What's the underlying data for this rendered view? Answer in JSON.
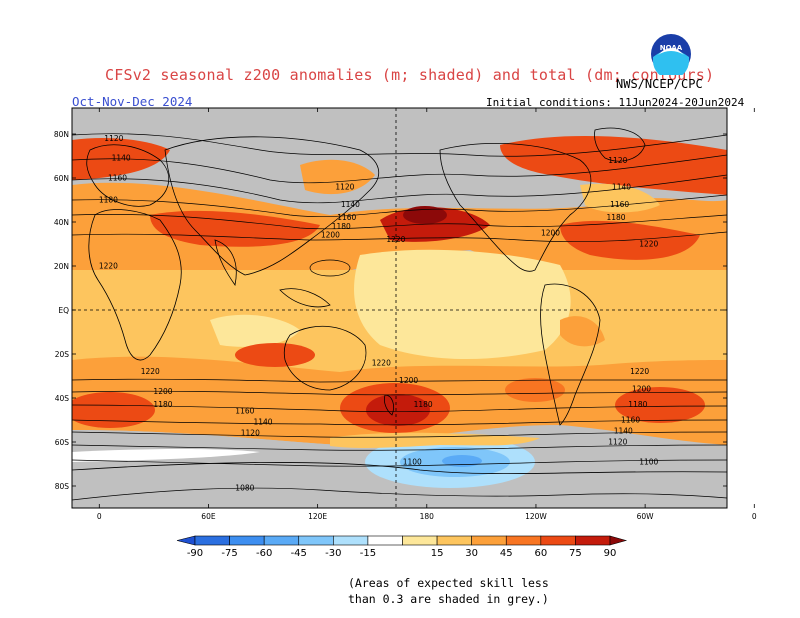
{
  "header": {
    "title": "CFSv2 seasonal z200 anomalies (m; shaded) and total (dm; contours)",
    "season": "Oct-Nov-Dec 2024",
    "initial_conditions": "Initial conditions: 11Jun2024-20Jun2024",
    "organization": "NWS/NCEP/CPC",
    "logo_text": "NOAA"
  },
  "map": {
    "lat_labels": [
      "80N",
      "60N",
      "40N",
      "20N",
      "EQ",
      "20S",
      "40S",
      "60S",
      "80S"
    ],
    "lon_labels": [
      "0",
      "60E",
      "120E",
      "180",
      "120W",
      "60W",
      "0"
    ],
    "contour_labels": [
      {
        "text": "1120",
        "lon": 8,
        "lat": 78
      },
      {
        "text": "1140",
        "lon": 12,
        "lat": 69
      },
      {
        "text": "1160",
        "lon": 10,
        "lat": 60
      },
      {
        "text": "1180",
        "lon": 5,
        "lat": 50
      },
      {
        "text": "1220",
        "lon": 5,
        "lat": 20
      },
      {
        "text": "1120",
        "lon": 135,
        "lat": 56
      },
      {
        "text": "1140",
        "lon": 138,
        "lat": 48
      },
      {
        "text": "1160",
        "lon": 136,
        "lat": 42
      },
      {
        "text": "1180",
        "lon": 133,
        "lat": 38
      },
      {
        "text": "1200",
        "lon": 127,
        "lat": 34
      },
      {
        "text": "1220",
        "lon": 163,
        "lat": 32
      },
      {
        "text": "1200",
        "lon": -112,
        "lat": 35
      },
      {
        "text": "1220",
        "lon": -58,
        "lat": 30
      },
      {
        "text": "1120",
        "lon": -75,
        "lat": 68
      },
      {
        "text": "1140",
        "lon": -73,
        "lat": 56
      },
      {
        "text": "1160",
        "lon": -74,
        "lat": 48
      },
      {
        "text": "1180",
        "lon": -76,
        "lat": 42
      },
      {
        "text": "1220",
        "lon": 28,
        "lat": -28
      },
      {
        "text": "1220",
        "lon": 155,
        "lat": -24
      },
      {
        "text": "1220",
        "lon": -63,
        "lat": -28
      },
      {
        "text": "1200",
        "lon": 35,
        "lat": -37
      },
      {
        "text": "1200",
        "lon": 170,
        "lat": -32
      },
      {
        "text": "1200",
        "lon": -62,
        "lat": -36
      },
      {
        "text": "1180",
        "lon": 35,
        "lat": -43
      },
      {
        "text": "1180",
        "lon": 178,
        "lat": -43
      },
      {
        "text": "1180",
        "lon": -64,
        "lat": -43
      },
      {
        "text": "1160",
        "lon": 80,
        "lat": -46
      },
      {
        "text": "1160",
        "lon": -68,
        "lat": -50
      },
      {
        "text": "1140",
        "lon": 90,
        "lat": -51
      },
      {
        "text": "1140",
        "lon": -72,
        "lat": -55
      },
      {
        "text": "1120",
        "lon": 83,
        "lat": -56
      },
      {
        "text": "1120",
        "lon": -75,
        "lat": -60
      },
      {
        "text": "1100",
        "lon": 172,
        "lat": -69
      },
      {
        "text": "1100",
        "lon": -58,
        "lat": -69
      },
      {
        "text": "1080",
        "lon": 80,
        "lat": -81
      }
    ]
  },
  "colorbar": {
    "labels": [
      "-90",
      "-75",
      "-60",
      "-45",
      "-30",
      "-15",
      "15",
      "30",
      "45",
      "60",
      "75",
      "90"
    ],
    "colors": [
      "#1e50d2",
      "#2b6fe0",
      "#3d8ef0",
      "#5aaaf6",
      "#7fc6fa",
      "#aee0fc",
      "#ffffff",
      "#fde79a",
      "#fdc55e",
      "#fca03a",
      "#f87522",
      "#ec4a14",
      "#c41b0b",
      "#8c0909"
    ]
  },
  "palette": {
    "grey": "#c0c0c0",
    "light_yellow": "#fde79a",
    "yellow_orange": "#fdc55e",
    "orange": "#fca03a",
    "dark_orange": "#f87522",
    "red_orange": "#ec4a14",
    "red": "#c41b0b",
    "dark_red": "#8c0909",
    "light_blue": "#aee0fc",
    "mid_blue": "#7fc6fa",
    "blue": "#5aaaf6",
    "land_line": "#000000"
  },
  "notes": {
    "line1": "(Areas of expected skill less",
    "line2": "than 0.3 are shaded in grey.)"
  }
}
